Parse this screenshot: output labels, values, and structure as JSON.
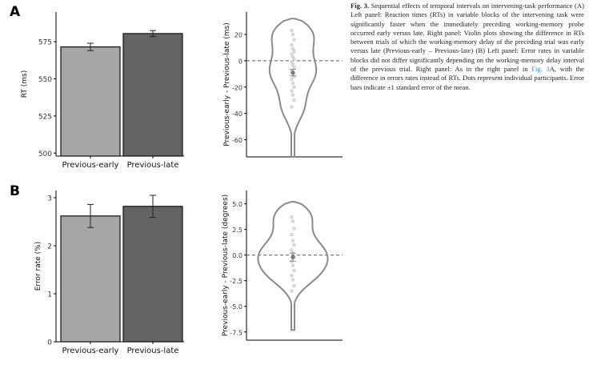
{
  "caption": {
    "label": "Fig. 3.",
    "part1": "Sequential effects of temporal intervals on intervening-task performance (A) Left panel: Reaction times (RTs) in variable blocks of the intervening task were significantly faster when the immediately preceding working-memory probe occurred early versus late. Right panel: Violin plots showing the difference in RTs between trials of which the working-memory delay of the preceding trial was early versus late (Previous-early – Previous-late) (B) Left panel: Error rates in variable blocks did not differ significantly depending on the working-memory delay interval of the previous trial. Right panel: As in the right panel in",
    "link": "Fig. 3",
    "part2": "A, with the difference in errors rates instead of RTs. Dots represent individual participants. Error bars indicate ±1 standard error of the mean."
  },
  "colors": {
    "early_bar": "#a6a6a6",
    "late_bar": "#646464",
    "violin": "#8a8a8a",
    "dots": "#d0d0d0",
    "axis": "#000000"
  },
  "chart_data": [
    {
      "panel": "A",
      "type": "bar",
      "categories": [
        "Previous-early",
        "Previous-late"
      ],
      "values": [
        571.5,
        580.5
      ],
      "errors": [
        2.5,
        2.0
      ],
      "xlabel": "",
      "ylabel": "RT (ms)",
      "ylim": [
        498,
        595
      ],
      "yticks": [
        500,
        525,
        550,
        575
      ]
    },
    {
      "panel": "A",
      "type": "violin",
      "ylabel": "Previous-early - Previous-late (ms)",
      "ylim": [
        -73,
        37
      ],
      "yticks": [
        20,
        0,
        -20,
        -40,
        -60
      ],
      "mean": -9,
      "se": 2.5,
      "range": [
        -73,
        32
      ],
      "reference_line": 0,
      "points": [
        23,
        20,
        16,
        12,
        9,
        7,
        5,
        3,
        1,
        -1,
        -3,
        -5,
        -8,
        -10,
        -12,
        -14,
        -17,
        -20,
        -23,
        -26,
        -30,
        -35
      ]
    },
    {
      "panel": "B",
      "type": "bar",
      "categories": [
        "Previous-early",
        "Previous-late"
      ],
      "values": [
        2.62,
        2.82
      ],
      "errors": [
        0.24,
        0.23
      ],
      "xlabel": "",
      "ylabel": "Error rate (%)",
      "ylim": [
        0,
        3.15
      ],
      "yticks": [
        0,
        1,
        2,
        3
      ]
    },
    {
      "panel": "B",
      "type": "violin",
      "ylabel": "Previous-early - Previous-late (degrees)",
      "ylim": [
        -8.3,
        6.3
      ],
      "yticks": [
        5.0,
        2.5,
        0.0,
        -2.5,
        -5.0,
        -7.5
      ],
      "mean": -0.2,
      "se": 0.4,
      "range": [
        -7.3,
        5.2
      ],
      "reference_line": 0,
      "points": [
        3.7,
        3.3,
        2.6,
        2.0,
        1.4,
        1.0,
        0.5,
        0.2,
        -0.2,
        -0.6,
        -1.0,
        -1.5,
        -2.0,
        -2.4,
        -3.0,
        -3.5
      ]
    }
  ],
  "panel_labels": [
    "A",
    "B"
  ]
}
